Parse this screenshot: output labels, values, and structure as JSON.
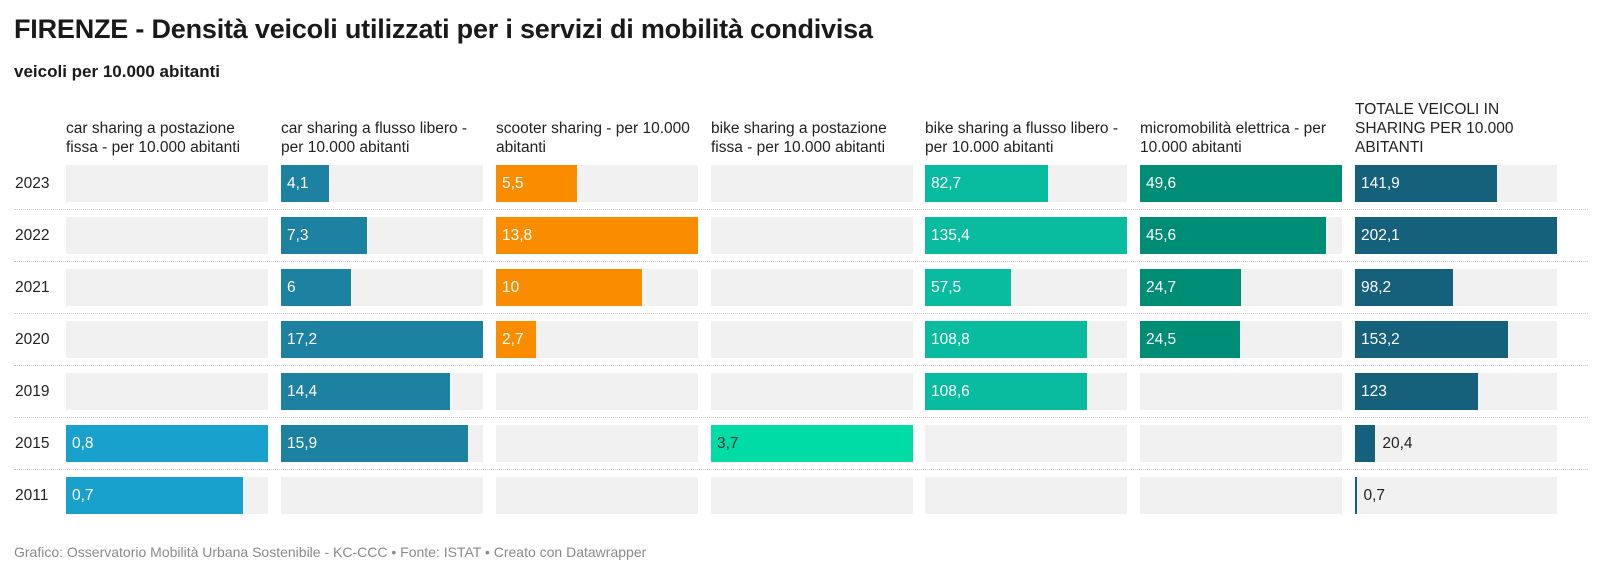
{
  "title": "FIRENZE - Densità veicoli utilizzati per i servizi di mobilità condivisa",
  "subtitle": "veicoli per 10.000 abitanti",
  "footer": "Grafico: Osservatorio Mobilità Urbana Sostenibile - KC-CCC • Fonte: ISTAT • Creato con Datawrapper",
  "chart_data": {
    "type": "bar",
    "orientation": "horizontal",
    "layout": "small-multiples",
    "categories": [
      "2023",
      "2022",
      "2021",
      "2020",
      "2019",
      "2015",
      "2011"
    ],
    "series": [
      {
        "name": "car sharing a postazione fissa - per 10.000 abitanti",
        "color": "#18a1cd",
        "labelColor": "#ffffff",
        "values": [
          null,
          null,
          null,
          null,
          null,
          0.8,
          0.7
        ],
        "labels": [
          "",
          "",
          "",
          "",
          "",
          "0,8",
          "0,7"
        ]
      },
      {
        "name": "car sharing a flusso libero - per 10.000 abitanti",
        "color": "#1d81a2",
        "labelColor": "#ffffff",
        "values": [
          4.1,
          7.3,
          6,
          17.2,
          14.4,
          15.9,
          null
        ],
        "labels": [
          "4,1",
          "7,3",
          "6",
          "17,2",
          "14,4",
          "15,9",
          ""
        ]
      },
      {
        "name": "scooter sharing - per 10.000 abitanti",
        "color": "#fa8c00",
        "labelColor": "#ffffff",
        "values": [
          5.5,
          13.8,
          10,
          2.7,
          null,
          null,
          null
        ],
        "labels": [
          "5,5",
          "13,8",
          "10",
          "2,7",
          "",
          "",
          ""
        ]
      },
      {
        "name": "bike sharing a postazione fissa - per 10.000 abitanti",
        "color": "#00dca6",
        "labelColor": "#333333",
        "values": [
          null,
          null,
          null,
          null,
          null,
          3.7,
          null
        ],
        "labels": [
          "",
          "",
          "",
          "",
          "",
          "3,7",
          ""
        ]
      },
      {
        "name": "bike sharing a flusso libero - per 10.000 abitanti",
        "color": "#09bb9f",
        "labelColor": "#ffffff",
        "values": [
          82.7,
          135.4,
          57.5,
          108.8,
          108.6,
          null,
          null
        ],
        "labels": [
          "82,7",
          "135,4",
          "57,5",
          "108,8",
          "108,6",
          "",
          ""
        ]
      },
      {
        "name": "micromobilità elettrica - per 10.000 abitanti",
        "color": "#008d76",
        "labelColor": "#ffffff",
        "values": [
          49.6,
          45.6,
          24.7,
          24.5,
          null,
          null,
          null
        ],
        "labels": [
          "49,6",
          "45,6",
          "24,7",
          "24,5",
          "",
          "",
          ""
        ]
      },
      {
        "name": "TOTALE VEICOLI IN SHARING PER 10.000 ABITANTI",
        "color": "#15607a",
        "labelColor": "#ffffff",
        "values": [
          141.9,
          202.1,
          98.2,
          153.2,
          123,
          20.4,
          0.7
        ],
        "labels": [
          "141,9",
          "202,1",
          "98,2",
          "153,2",
          "123",
          "20,4",
          "0,7"
        ]
      }
    ],
    "grid": false,
    "legend": "none"
  }
}
